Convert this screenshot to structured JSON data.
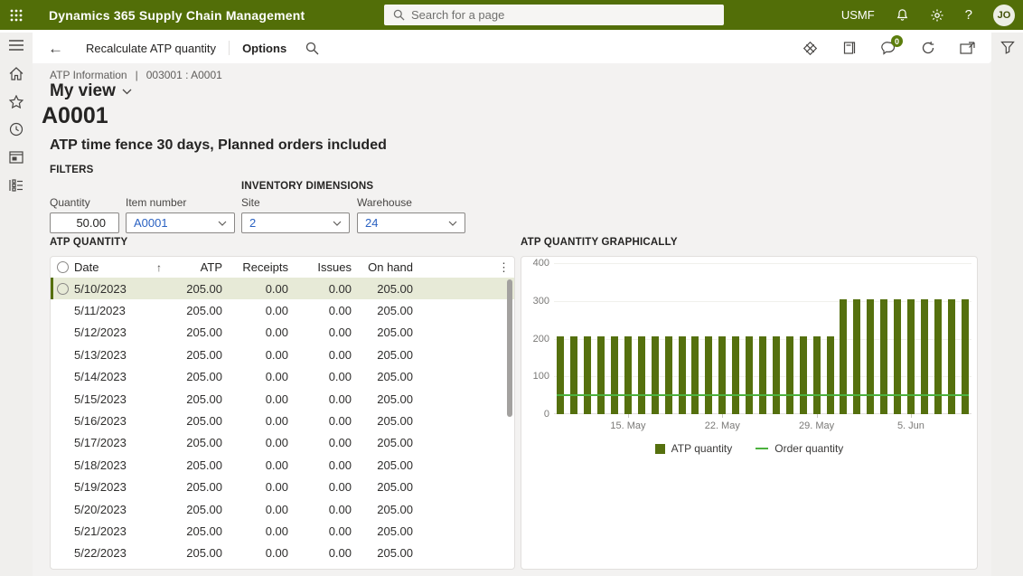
{
  "app_bar": {
    "product": "Dynamics 365 Supply Chain Management",
    "search_placeholder": "Search for a page",
    "company": "USMF",
    "help_glyph": "?",
    "user_initials": "JO"
  },
  "action_pane": {
    "title": "Recalculate ATP quantity",
    "menu_label": "Options",
    "message_badge": "0"
  },
  "icons": {
    "back": "←",
    "pipe": "|",
    "sort_ascending": "↑",
    "column_overflow": "⋮"
  },
  "nav": {
    "items": [
      "expand-menu",
      "home",
      "favorites",
      "recent",
      "modules",
      "workspaces"
    ]
  },
  "page": {
    "breadcrumb": "ATP Information",
    "record": "003001 : A0001",
    "view_selector": "My view",
    "title": "A0001",
    "subtitle": "ATP time fence 30 days, Planned orders included"
  },
  "filters": {
    "section_label": "FILTERS",
    "dimensions_label": "INVENTORY DIMENSIONS",
    "quantity": {
      "label": "Quantity",
      "value": "50.00"
    },
    "item_number": {
      "label": "Item number",
      "value": "A0001"
    },
    "site": {
      "label": "Site",
      "value": "2"
    },
    "warehouse": {
      "label": "Warehouse",
      "value": "24"
    }
  },
  "atp_table": {
    "section_label": "ATP QUANTITY",
    "columns": [
      "Date",
      "ATP",
      "Receipts",
      "Issues",
      "On hand"
    ],
    "sort_column": "Date",
    "selected_row": 0,
    "rows": [
      {
        "date": "5/10/2023",
        "atp": "205.00",
        "receipts": "0.00",
        "issues": "0.00",
        "on_hand": "205.00"
      },
      {
        "date": "5/11/2023",
        "atp": "205.00",
        "receipts": "0.00",
        "issues": "0.00",
        "on_hand": "205.00"
      },
      {
        "date": "5/12/2023",
        "atp": "205.00",
        "receipts": "0.00",
        "issues": "0.00",
        "on_hand": "205.00"
      },
      {
        "date": "5/13/2023",
        "atp": "205.00",
        "receipts": "0.00",
        "issues": "0.00",
        "on_hand": "205.00"
      },
      {
        "date": "5/14/2023",
        "atp": "205.00",
        "receipts": "0.00",
        "issues": "0.00",
        "on_hand": "205.00"
      },
      {
        "date": "5/15/2023",
        "atp": "205.00",
        "receipts": "0.00",
        "issues": "0.00",
        "on_hand": "205.00"
      },
      {
        "date": "5/16/2023",
        "atp": "205.00",
        "receipts": "0.00",
        "issues": "0.00",
        "on_hand": "205.00"
      },
      {
        "date": "5/17/2023",
        "atp": "205.00",
        "receipts": "0.00",
        "issues": "0.00",
        "on_hand": "205.00"
      },
      {
        "date": "5/18/2023",
        "atp": "205.00",
        "receipts": "0.00",
        "issues": "0.00",
        "on_hand": "205.00"
      },
      {
        "date": "5/19/2023",
        "atp": "205.00",
        "receipts": "0.00",
        "issues": "0.00",
        "on_hand": "205.00"
      },
      {
        "date": "5/20/2023",
        "atp": "205.00",
        "receipts": "0.00",
        "issues": "0.00",
        "on_hand": "205.00"
      },
      {
        "date": "5/21/2023",
        "atp": "205.00",
        "receipts": "0.00",
        "issues": "0.00",
        "on_hand": "205.00"
      },
      {
        "date": "5/22/2023",
        "atp": "205.00",
        "receipts": "0.00",
        "issues": "0.00",
        "on_hand": "205.00"
      }
    ]
  },
  "chart_section": {
    "label": "ATP QUANTITY GRAPHICALLY"
  },
  "chart_data": {
    "type": "bar",
    "title": "ATP quantity graphically",
    "x": [
      "5/10/2023",
      "5/11/2023",
      "5/12/2023",
      "5/13/2023",
      "5/14/2023",
      "5/15/2023",
      "5/16/2023",
      "5/17/2023",
      "5/18/2023",
      "5/19/2023",
      "5/20/2023",
      "5/21/2023",
      "5/22/2023",
      "5/23/2023",
      "5/24/2023",
      "5/25/2023",
      "5/26/2023",
      "5/27/2023",
      "5/28/2023",
      "5/29/2023",
      "5/30/2023",
      "5/31/2023",
      "6/1/2023",
      "6/2/2023",
      "6/3/2023",
      "6/4/2023",
      "6/5/2023",
      "6/6/2023",
      "6/7/2023",
      "6/8/2023",
      "6/9/2023"
    ],
    "series": [
      {
        "name": "ATP quantity",
        "type": "bar",
        "color": "#55700e",
        "values": [
          205,
          205,
          205,
          205,
          205,
          205,
          205,
          205,
          205,
          205,
          205,
          205,
          205,
          205,
          205,
          205,
          205,
          205,
          205,
          205,
          205,
          305,
          305,
          305,
          305,
          305,
          305,
          305,
          305,
          305,
          305
        ]
      },
      {
        "name": "Order quantity",
        "type": "line",
        "color": "#4cb13e",
        "values": [
          50,
          50,
          50,
          50,
          50,
          50,
          50,
          50,
          50,
          50,
          50,
          50,
          50,
          50,
          50,
          50,
          50,
          50,
          50,
          50,
          50,
          50,
          50,
          50,
          50,
          50,
          50,
          50,
          50,
          50,
          50
        ]
      }
    ],
    "ylim": [
      0,
      400
    ],
    "yticks": [
      0,
      100,
      200,
      300,
      400
    ],
    "xticks": [
      {
        "index": 5,
        "label": "15. May"
      },
      {
        "index": 12,
        "label": "22. May"
      },
      {
        "index": 19,
        "label": "29. May"
      },
      {
        "index": 26,
        "label": "5. Jun"
      }
    ],
    "grid": true,
    "legend_position": "bottom"
  },
  "colors": {
    "brand": "#526e08",
    "bar": "#55700e",
    "order_line": "#4cb13e",
    "selected_row_bg": "#e7ead7",
    "link": "#2b62c2"
  }
}
